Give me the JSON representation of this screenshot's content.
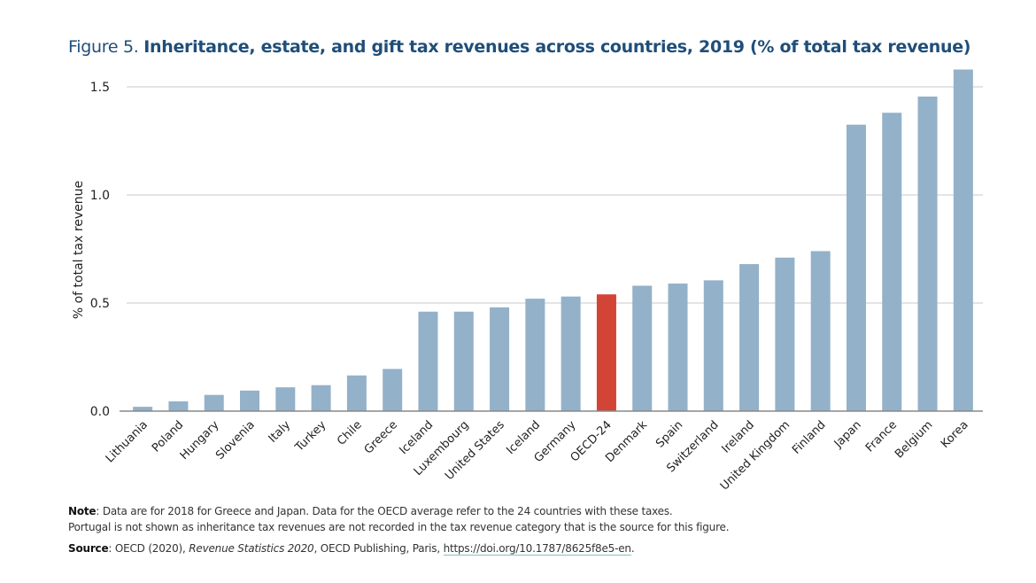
{
  "figure": {
    "prefix": "Figure 5. ",
    "title": "Inheritance, estate, and gift tax revenues across countries, 2019 (% of total tax revenue)"
  },
  "chart_data": {
    "type": "bar",
    "title": "Inheritance, estate, and gift tax revenues across countries, 2019 (% of total tax revenue)",
    "xlabel": "",
    "ylabel": "% of total tax revenue",
    "ylim": [
      0,
      1.5
    ],
    "yticks": [
      0.0,
      0.5,
      1.0,
      1.5
    ],
    "ytick_labels": [
      "0.0",
      "0.5",
      "1.0",
      "1.5"
    ],
    "grid": true,
    "legend": "none",
    "categories": [
      "Lithuania",
      "Poland",
      "Hungary",
      "Slovenia",
      "Italy",
      "Turkey",
      "Chile",
      "Greece",
      "Iceland",
      "Luxembourg",
      "United States",
      "Iceland",
      "Germany",
      "OECD-24",
      "Denmark",
      "Spain",
      "Switzerland",
      "Ireland",
      "United Kingdom",
      "Finland",
      "Japan",
      "France",
      "Belgium",
      "Korea"
    ],
    "values": [
      0.02,
      0.045,
      0.075,
      0.095,
      0.11,
      0.12,
      0.165,
      0.195,
      0.46,
      0.46,
      0.48,
      0.52,
      0.53,
      0.54,
      0.58,
      0.59,
      0.605,
      0.68,
      0.71,
      0.74,
      1.325,
      1.38,
      1.455,
      1.58
    ],
    "highlight_category": "OECD-24",
    "colors": {
      "bar": "#93b1c9",
      "highlight": "#d24436",
      "grid": "#c8c8c8",
      "axis": "#888888"
    }
  },
  "note": {
    "label": "Note",
    "line1": ": Data are for 2018 for Greece and Japan. Data for the OECD average refer to the 24 countries with these taxes.",
    "line2": "Portugal is not shown as inheritance tax revenues are not recorded in the tax revenue category that is the source for this figure."
  },
  "source": {
    "label": "Source",
    "text1": ": OECD (2020), ",
    "publication": "Revenue Statistics 2020",
    "text2": ", OECD Publishing, Paris, ",
    "link": "https://doi.org/10.1787/8625f8e5-en",
    "text3": "."
  }
}
